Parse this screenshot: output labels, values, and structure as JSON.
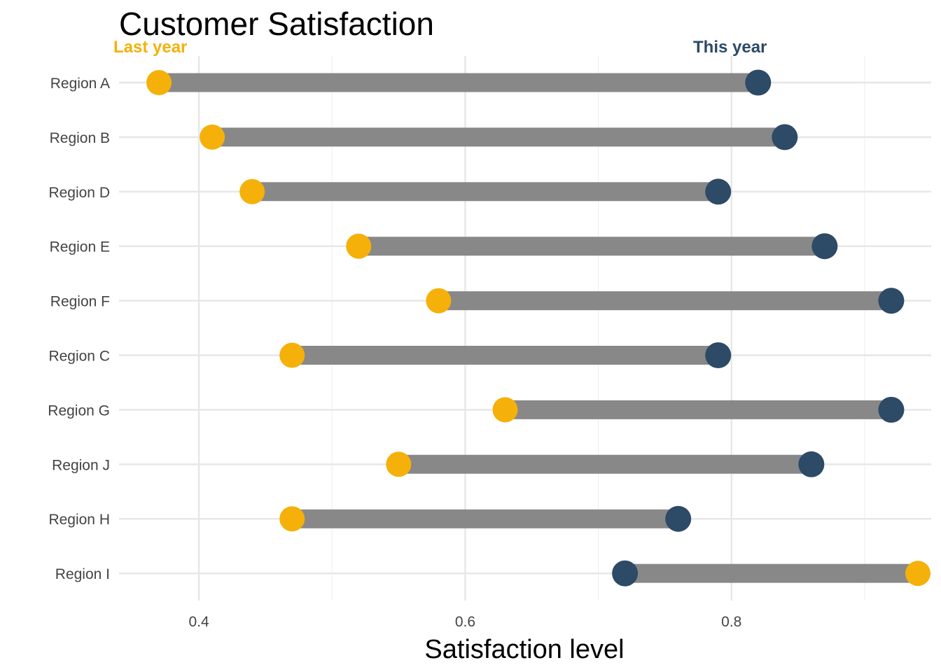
{
  "chart_data": {
    "type": "dumbbell",
    "title": "Customer Satisfaction",
    "xlabel": "Satisfaction level",
    "ylabel": "",
    "xlim": [
      0.34,
      0.95
    ],
    "x_ticks": [
      0.4,
      0.6,
      0.8
    ],
    "x_tick_labels": [
      "0.4",
      "0.6",
      "0.8"
    ],
    "grid": true,
    "categories": [
      "Region A",
      "Region B",
      "Region D",
      "Region E",
      "Region F",
      "Region C",
      "Region G",
      "Region J",
      "Region H",
      "Region I"
    ],
    "series": [
      {
        "name": "Last year",
        "color": "#f5b10a",
        "values": [
          0.37,
          0.41,
          0.44,
          0.52,
          0.58,
          0.47,
          0.63,
          0.55,
          0.47,
          0.94
        ]
      },
      {
        "name": "This year",
        "color": "#2d4a66",
        "values": [
          0.82,
          0.84,
          0.79,
          0.87,
          0.92,
          0.79,
          0.92,
          0.86,
          0.76,
          0.72
        ]
      }
    ],
    "segment_color": "#888888"
  }
}
